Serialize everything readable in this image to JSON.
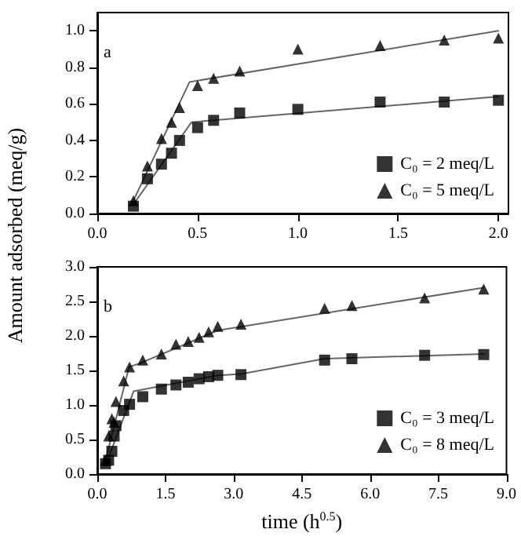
{
  "chart_data": [
    {
      "type": "scatter",
      "ylabel": "Amount adsorbed (meq/g)",
      "annotations": [
        "a"
      ],
      "legend": "bottom right",
      "grid": false,
      "xlim": [
        0,
        2.05
      ],
      "xticks": [
        {
          "value": 0,
          "label": "0.0"
        },
        {
          "value": 0.5,
          "label": "0.5"
        },
        {
          "value": 1,
          "label": "1.0"
        },
        {
          "value": 1.5,
          "label": "1.5"
        },
        {
          "value": 2,
          "label": "2.0"
        }
      ],
      "ylim": [
        0,
        1.1
      ],
      "yticks": [
        {
          "value": 0,
          "label": "0.0"
        },
        {
          "value": 0.2,
          "label": "0.2"
        },
        {
          "value": 0.4,
          "label": "0.4"
        },
        {
          "value": 0.6,
          "label": "0.6"
        },
        {
          "value": 0.8,
          "label": "0.8"
        },
        {
          "value": 1,
          "label": "1.0"
        }
      ],
      "x": [
        0.18,
        0.25,
        0.32,
        0.37,
        0.41,
        0.5,
        0.58,
        0.71,
        1.0,
        1.41,
        1.73,
        2.0
      ],
      "series": [
        {
          "name": "C₀ = 2 meq/L",
          "color": "#000000",
          "marker": "square",
          "values": [
            0.04,
            0.19,
            0.27,
            0.33,
            0.4,
            0.47,
            0.51,
            0.55,
            0.57,
            0.61,
            0.61,
            0.62
          ]
        },
        {
          "name": "C₀ = 5 meq/L",
          "color": "#000000",
          "marker": "triangle",
          "values": [
            0.07,
            0.26,
            0.41,
            0.5,
            0.58,
            0.7,
            0.74,
            0.78,
            0.9,
            0.92,
            0.95,
            0.96
          ]
        },
        {
          "type": "line",
          "color": "#666666",
          "marker": "none",
          "x": [
            0.18,
            0.47,
            2.0
          ],
          "values": [
            0.05,
            0.5,
            0.64
          ]
        },
        {
          "type": "line",
          "color": "#666666",
          "marker": "none",
          "x": [
            0.18,
            0.46,
            2.0
          ],
          "values": [
            0.07,
            0.72,
            1.0
          ]
        }
      ]
    },
    {
      "type": "scatter",
      "xlabel": "time (h$^{0.5}$)",
      "annotations": [
        "b"
      ],
      "legend": "bottom right",
      "grid": false,
      "xlim": [
        0,
        9
      ],
      "xticks": [
        {
          "value": 0,
          "label": "0.0"
        },
        {
          "value": 1.5,
          "label": "1.5"
        },
        {
          "value": 3,
          "label": "3.0"
        },
        {
          "value": 4.5,
          "label": "4.5"
        },
        {
          "value": 6,
          "label": "6.0"
        },
        {
          "value": 7.5,
          "label": "7.5"
        },
        {
          "value": 9,
          "label": "9.0"
        }
      ],
      "ylim": [
        0,
        3
      ],
      "yticks": [
        {
          "value": 0,
          "label": "0.0"
        },
        {
          "value": 0.5,
          "label": "0.5"
        },
        {
          "value": 1,
          "label": "1.0"
        },
        {
          "value": 1.5,
          "label": "1.5"
        },
        {
          "value": 2,
          "label": "2.0"
        },
        {
          "value": 2.5,
          "label": "2.5"
        },
        {
          "value": 3,
          "label": "3.0"
        }
      ],
      "x": [
        0.18,
        0.25,
        0.32,
        0.37,
        0.41,
        0.58,
        0.71,
        1.0,
        1.41,
        1.73,
        2.0,
        2.24,
        2.45,
        2.65,
        3.16,
        5.0,
        5.6,
        7.2,
        8.5
      ],
      "series": [
        {
          "name": "C₀ = 3 meq/L",
          "color": "#000000",
          "marker": "square",
          "values": [
            0.15,
            0.2,
            0.33,
            0.55,
            0.7,
            0.92,
            1.01,
            1.12,
            1.23,
            1.29,
            1.33,
            1.38,
            1.41,
            1.43,
            1.44,
            1.65,
            1.67,
            1.72,
            1.73
          ]
        },
        {
          "name": "C₀ = 8 meq/L",
          "color": "#000000",
          "marker": "triangle",
          "values": [
            0.2,
            0.55,
            0.8,
            0.75,
            1.05,
            1.35,
            1.55,
            1.65,
            1.74,
            1.88,
            1.92,
            1.98,
            2.06,
            2.14,
            2.17,
            2.4,
            2.44,
            2.55,
            2.68
          ]
        },
        {
          "type": "line",
          "color": "#666666",
          "marker": "none",
          "x": [
            0.18,
            0.8,
            2.65,
            3.16,
            5.0,
            8.5
          ],
          "values": [
            0.12,
            1.2,
            1.43,
            1.45,
            1.67,
            1.74
          ]
        },
        {
          "type": "line",
          "color": "#666666",
          "marker": "none",
          "x": [
            0.18,
            0.7,
            1.0,
            2.65,
            8.5
          ],
          "values": [
            0.2,
            1.55,
            1.62,
            2.08,
            2.7
          ]
        }
      ]
    }
  ]
}
